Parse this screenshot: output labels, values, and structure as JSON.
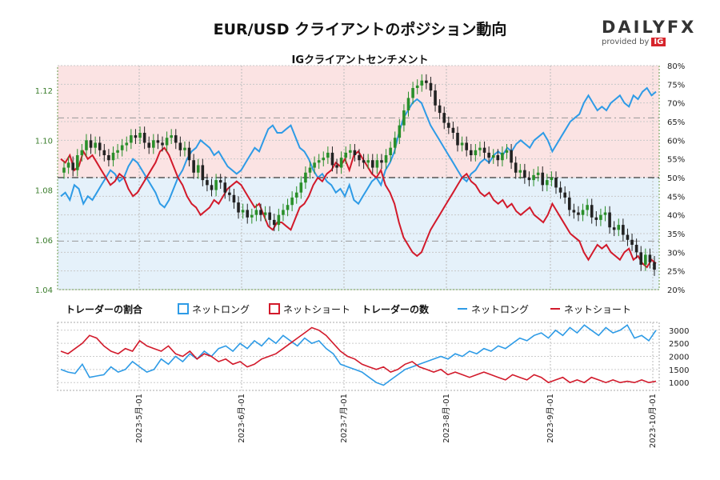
{
  "header": {
    "title": "EUR/USD クライアントのポジション動向",
    "subtitle": "IGクライアントセンチメント"
  },
  "brand": {
    "name": "DAILYFX",
    "provided_by": "provided by",
    "ig": "IG"
  },
  "legend": {
    "ratio_title": "トレーダーの割合",
    "count_title": "トレーダーの数",
    "net_long": "ネットロング",
    "net_short": "ネットショート"
  },
  "colors": {
    "long": "#2e9be6",
    "short": "#d21a2b",
    "price_up": "#2a8f2a",
    "price_down": "#222222",
    "long_zone": "#e5f1fa",
    "short_zone": "#fbe3e3",
    "left_axis": "#3a7d2b"
  },
  "chart_data": [
    {
      "type": "candlestick",
      "title": "IGクライアントセンチメント",
      "y_left_ticks": [
        "1.04",
        "1.06",
        "1.08",
        "1.10",
        "1.12"
      ],
      "y_left_range": [
        1.04,
        1.13
      ],
      "y_right_ticks": [
        "20%",
        "25%",
        "30%",
        "35%",
        "40%",
        "45%",
        "50%",
        "55%",
        "60%",
        "65%",
        "70%",
        "75%",
        "80%"
      ],
      "y_right_range": [
        20,
        80
      ],
      "price_close": [
        1.089,
        1.091,
        1.088,
        1.094,
        1.096,
        1.1,
        1.097,
        1.099,
        1.096,
        1.094,
        1.092,
        1.095,
        1.096,
        1.098,
        1.099,
        1.102,
        1.101,
        1.103,
        1.099,
        1.097,
        1.1,
        1.099,
        1.098,
        1.101,
        1.102,
        1.099,
        1.096,
        1.097,
        1.092,
        1.087,
        1.09,
        1.084,
        1.082,
        1.08,
        1.084,
        1.083,
        1.079,
        1.078,
        1.075,
        1.071,
        1.072,
        1.069,
        1.07,
        1.072,
        1.07,
        1.071,
        1.068,
        1.066,
        1.07,
        1.072,
        1.074,
        1.077,
        1.079,
        1.083,
        1.087,
        1.089,
        1.091,
        1.092,
        1.093,
        1.095,
        1.09,
        1.089,
        1.093,
        1.095,
        1.096,
        1.094,
        1.092,
        1.091,
        1.092,
        1.089,
        1.092,
        1.091,
        1.094,
        1.097,
        1.101,
        1.106,
        1.112,
        1.117,
        1.121,
        1.122,
        1.124,
        1.123,
        1.12,
        1.114,
        1.111,
        1.107,
        1.105,
        1.103,
        1.098,
        1.099,
        1.096,
        1.094,
        1.096,
        1.097,
        1.095,
        1.093,
        1.094,
        1.092,
        1.095,
        1.096,
        1.091,
        1.087,
        1.088,
        1.085,
        1.084,
        1.086,
        1.087,
        1.082,
        1.084,
        1.085,
        1.081,
        1.079,
        1.077,
        1.072,
        1.071,
        1.07,
        1.072,
        1.074,
        1.069,
        1.068,
        1.07,
        1.071,
        1.065,
        1.064,
        1.066,
        1.062,
        1.06,
        1.058,
        1.055,
        1.05,
        1.054,
        1.051,
        1.048
      ],
      "net_long_pct": [
        45,
        46,
        44,
        48,
        47,
        43,
        45,
        44,
        46,
        48,
        50,
        52,
        51,
        49,
        50,
        53,
        55,
        54,
        52,
        50,
        48,
        46,
        43,
        42,
        44,
        47,
        50,
        52,
        55,
        57,
        58,
        60,
        59,
        58,
        56,
        57,
        55,
        53,
        52,
        51,
        52,
        54,
        56,
        58,
        57,
        60,
        63,
        64,
        62,
        62,
        63,
        64,
        61,
        58,
        57,
        55,
        52,
        50,
        51,
        49,
        48,
        46,
        47,
        45,
        48,
        44,
        43,
        45,
        47,
        49,
        50,
        48,
        52,
        54,
        57,
        62,
        66,
        68,
        70,
        71,
        70,
        67,
        64,
        62,
        60,
        58,
        56,
        54,
        52,
        50,
        49,
        51,
        52,
        54,
        55,
        54,
        56,
        57,
        56,
        58,
        57,
        59,
        60,
        59,
        58,
        60,
        61,
        62,
        60,
        57,
        59,
        61,
        63,
        65,
        66,
        67,
        70,
        72,
        70,
        68,
        69,
        68,
        70,
        71,
        72,
        70,
        69,
        72,
        71,
        73,
        74,
        72,
        73
      ],
      "net_short_pct": [
        55,
        54,
        56,
        52,
        53,
        57,
        55,
        56,
        54,
        52,
        50,
        48,
        49,
        51,
        50,
        47,
        45,
        46,
        48,
        50,
        52,
        54,
        57,
        58,
        56,
        53,
        50,
        48,
        45,
        43,
        42,
        40,
        41,
        42,
        44,
        43,
        45,
        47,
        48,
        49,
        48,
        46,
        44,
        42,
        43,
        40,
        37,
        36,
        38,
        38,
        37,
        36,
        39,
        42,
        43,
        45,
        48,
        50,
        49,
        51,
        52,
        54,
        53,
        55,
        52,
        56,
        57,
        55,
        53,
        51,
        50,
        52,
        48,
        46,
        43,
        38,
        34,
        32,
        30,
        29,
        30,
        33,
        36,
        38,
        40,
        42,
        44,
        46,
        48,
        50,
        51,
        49,
        48,
        46,
        45,
        46,
        44,
        43,
        44,
        42,
        43,
        41,
        40,
        41,
        42,
        40,
        39,
        38,
        40,
        43,
        41,
        39,
        37,
        35,
        34,
        33,
        30,
        28,
        30,
        32,
        31,
        32,
        30,
        29,
        28,
        30,
        31,
        28,
        29,
        27,
        26,
        28,
        27
      ]
    },
    {
      "type": "line",
      "title": "トレーダーの数",
      "y_ticks": [
        "1000",
        "1500",
        "2000",
        "2500",
        "3000"
      ],
      "y_range": [
        700,
        3300
      ],
      "x_ticks": [
        "2023-5月-01",
        "2023-6月-01",
        "2023-7月-01",
        "2023-8月-01",
        "2023-9月-01",
        "2023-10月-01"
      ],
      "series": [
        {
          "name": "ネットロング",
          "values": [
            1500,
            1400,
            1350,
            1700,
            1200,
            1250,
            1300,
            1600,
            1400,
            1500,
            1800,
            1600,
            1400,
            1500,
            1900,
            1700,
            2000,
            1800,
            2100,
            1900,
            2200,
            2000,
            2300,
            2400,
            2200,
            2500,
            2300,
            2600,
            2400,
            2700,
            2500,
            2800,
            2600,
            2400,
            2700,
            2500,
            2600,
            2300,
            2100,
            1700,
            1600,
            1500,
            1400,
            1200,
            1000,
            900,
            1100,
            1300,
            1500,
            1600,
            1700,
            1800,
            1900,
            2000,
            1900,
            2100,
            2000,
            2200,
            2100,
            2300,
            2200,
            2400,
            2300,
            2500,
            2700,
            2600,
            2800,
            2900,
            2700,
            3000,
            2800,
            3100,
            2900,
            3200,
            3000,
            2800,
            3100,
            2900,
            3000,
            3200,
            2700,
            2800,
            2600,
            3000
          ],
          "color": "#2e9be6"
        },
        {
          "name": "ネットショート",
          "values": [
            2200,
            2100,
            2300,
            2500,
            2800,
            2700,
            2400,
            2200,
            2100,
            2300,
            2200,
            2600,
            2400,
            2300,
            2200,
            2400,
            2100,
            2000,
            2200,
            1900,
            2100,
            2000,
            1800,
            1900,
            1700,
            1800,
            1600,
            1700,
            1900,
            2000,
            2100,
            2300,
            2500,
            2700,
            2900,
            3100,
            3000,
            2800,
            2500,
            2200,
            2000,
            1900,
            1700,
            1600,
            1500,
            1600,
            1400,
            1500,
            1700,
            1800,
            1600,
            1500,
            1400,
            1500,
            1300,
            1400,
            1300,
            1200,
            1300,
            1400,
            1300,
            1200,
            1100,
            1300,
            1200,
            1100,
            1300,
            1200,
            1000,
            1100,
            1200,
            1000,
            1100,
            1000,
            1200,
            1100,
            1000,
            1100,
            1000,
            1050,
            1000,
            1100,
            1000,
            1050
          ],
          "color": "#d21a2b"
        }
      ]
    }
  ]
}
